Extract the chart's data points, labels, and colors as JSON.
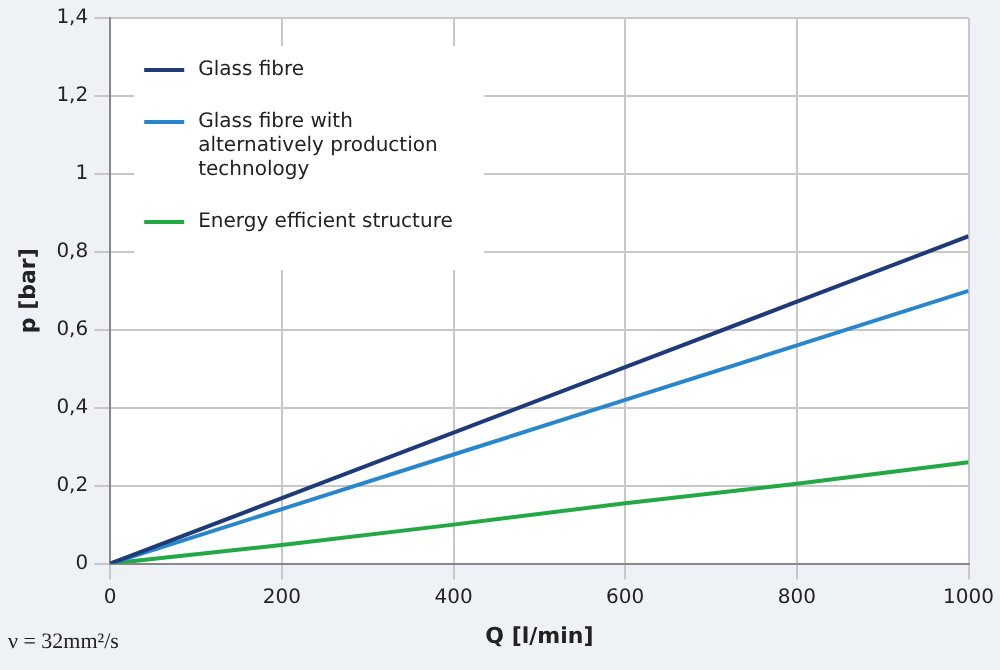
{
  "chart_data": {
    "type": "line",
    "xlabel": "Q [l/min]",
    "ylabel": "p [bar]",
    "x": [
      0,
      200,
      400,
      600,
      800,
      1000
    ],
    "series": [
      {
        "name": "Glass fibre",
        "color": "#1f3a78",
        "values": [
          0,
          0.168,
          0.336,
          0.504,
          0.672,
          0.84
        ]
      },
      {
        "name": "Glass fibre with alternatively production technology",
        "color": "#2a86cc",
        "values": [
          0,
          0.14,
          0.28,
          0.42,
          0.56,
          0.7
        ]
      },
      {
        "name": "Energy efficient structure",
        "color": "#22a845",
        "values": [
          0,
          0.048,
          0.1,
          0.155,
          0.205,
          0.26
        ]
      }
    ],
    "xlim": [
      0,
      1000
    ],
    "xticks": [
      0,
      200,
      400,
      600,
      800,
      1000
    ],
    "ylim": [
      0,
      1.4
    ],
    "yticks": [
      {
        "value": 0,
        "label": "0"
      },
      {
        "value": 0.2,
        "label": "0,2"
      },
      {
        "value": 0.4,
        "label": "0,4"
      },
      {
        "value": 0.6,
        "label": "0,6"
      },
      {
        "value": 0.8,
        "label": "0,8"
      },
      {
        "value": 1,
        "label": "1"
      },
      {
        "value": 1.2,
        "label": "1,2"
      },
      {
        "value": 1.4,
        "label": "1,4"
      }
    ],
    "grid": true,
    "legend": "top left",
    "marker": "none",
    "line_style": "solid",
    "annotations": [
      "ν = 32mm²/s"
    ]
  }
}
